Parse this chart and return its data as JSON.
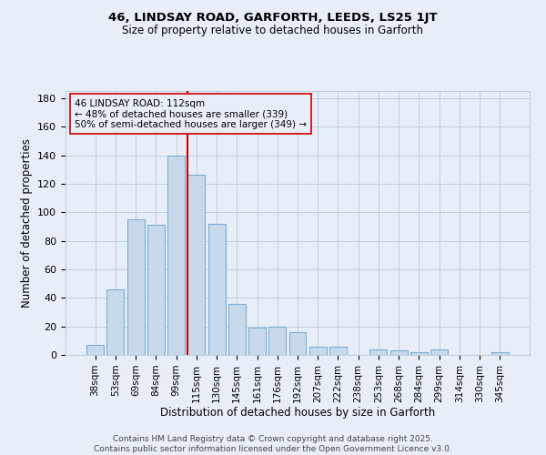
{
  "title1": "46, LINDSAY ROAD, GARFORTH, LEEDS, LS25 1JT",
  "title2": "Size of property relative to detached houses in Garforth",
  "xlabel": "Distribution of detached houses by size in Garforth",
  "ylabel": "Number of detached properties",
  "categories": [
    "38sqm",
    "53sqm",
    "69sqm",
    "84sqm",
    "99sqm",
    "115sqm",
    "130sqm",
    "145sqm",
    "161sqm",
    "176sqm",
    "192sqm",
    "207sqm",
    "222sqm",
    "238sqm",
    "253sqm",
    "268sqm",
    "284sqm",
    "299sqm",
    "314sqm",
    "330sqm",
    "345sqm"
  ],
  "values": [
    7,
    46,
    95,
    91,
    140,
    126,
    92,
    36,
    19,
    20,
    16,
    6,
    6,
    0,
    4,
    3,
    2,
    4,
    0,
    0,
    2
  ],
  "bar_color": "#c9d9ec",
  "bar_edge_color": "#7aafd4",
  "grid_color": "#c0cfe0",
  "background_color": "#e8eef7",
  "vline_x_index": 5,
  "vline_color": "#cc0000",
  "annotation_text": "46 LINDSAY ROAD: 112sqm\n← 48% of detached houses are smaller (339)\n50% of semi-detached houses are larger (349) →",
  "footer_text": "Contains HM Land Registry data © Crown copyright and database right 2025.\nContains public sector information licensed under the Open Government Licence v3.0.",
  "ylim": [
    0,
    185
  ],
  "yticks": [
    0,
    20,
    40,
    60,
    80,
    100,
    120,
    140,
    160,
    180
  ]
}
